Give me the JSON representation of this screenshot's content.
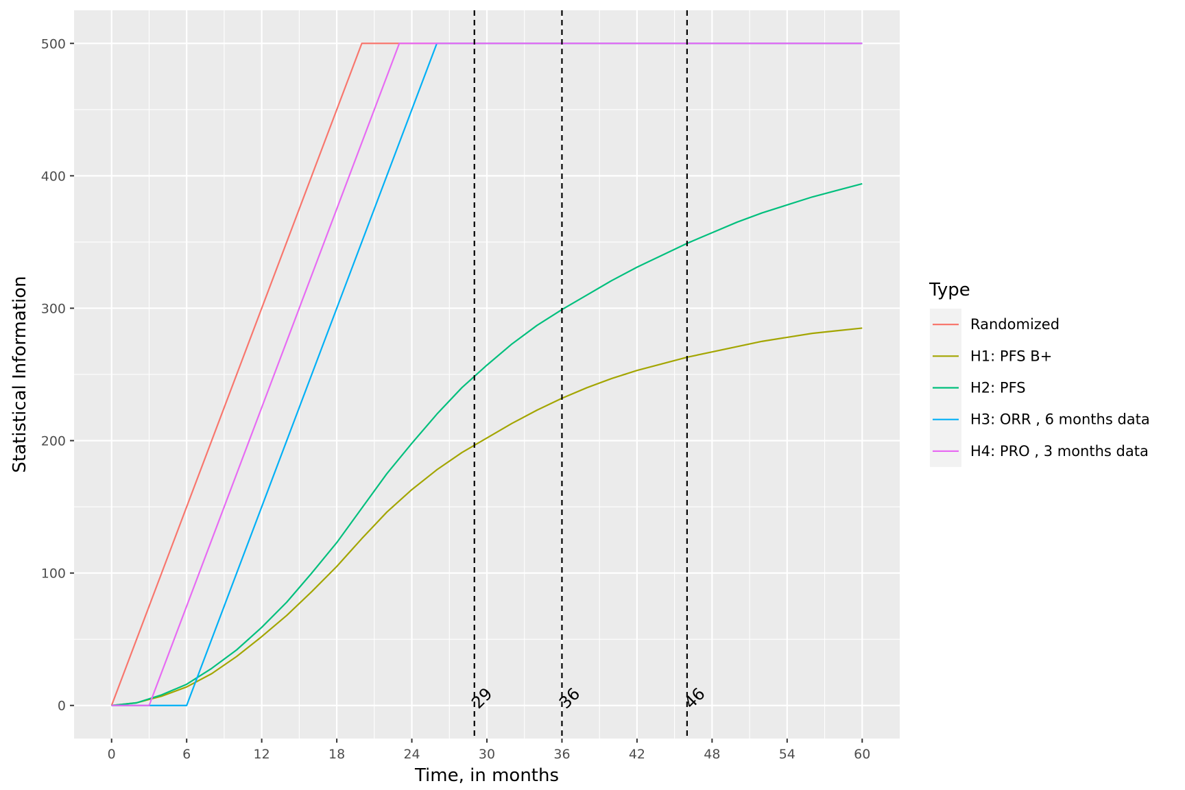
{
  "chart_data": {
    "type": "line",
    "title": "",
    "xlabel": "Time, in months",
    "ylabel": "Statistical Information",
    "xlim": [
      -3,
      63
    ],
    "ylim": [
      -25,
      525
    ],
    "x_ticks": [
      0,
      6,
      12,
      18,
      24,
      30,
      36,
      42,
      48,
      54,
      60
    ],
    "x_tick_labels": [
      "0",
      "6",
      "12",
      "18",
      "24",
      "30",
      "36",
      "42",
      "48",
      "54",
      "60"
    ],
    "y_ticks": [
      0,
      100,
      200,
      300,
      400,
      500
    ],
    "y_tick_labels": [
      "0",
      "100",
      "200",
      "300",
      "400",
      "500"
    ],
    "grid": true,
    "legend": {
      "title": "Type",
      "position": "right",
      "entries": [
        "Randomized",
        "H1: PFS B+",
        "H2: PFS",
        "H3: ORR , 6 months data",
        "H4: PRO , 3 months data"
      ]
    },
    "vlines": [
      {
        "x": 29,
        "label": "29"
      },
      {
        "x": 36,
        "label": "36"
      },
      {
        "x": 46,
        "label": "46"
      }
    ],
    "series": [
      {
        "name": "Randomized",
        "color": "#F8766D",
        "x": [
          0,
          20,
          60
        ],
        "y": [
          0,
          500,
          500
        ]
      },
      {
        "name": "H1: PFS B+",
        "color": "#A3A500",
        "x": [
          0,
          2,
          4,
          6,
          8,
          10,
          12,
          14,
          16,
          18,
          20,
          22,
          24,
          26,
          28,
          30,
          32,
          34,
          36,
          38,
          40,
          42,
          44,
          46,
          48,
          50,
          52,
          54,
          56,
          58,
          60
        ],
        "y": [
          0,
          2,
          7,
          14,
          24,
          37,
          52,
          68,
          86,
          105,
          126,
          146,
          163,
          178,
          191,
          202,
          213,
          223,
          232,
          240,
          247,
          253,
          258,
          263,
          267,
          271,
          275,
          278,
          281,
          283,
          285
        ]
      },
      {
        "name": "H2: PFS",
        "color": "#00BF7D",
        "x": [
          0,
          2,
          4,
          6,
          8,
          10,
          12,
          14,
          16,
          18,
          20,
          22,
          24,
          26,
          28,
          30,
          32,
          34,
          36,
          38,
          40,
          42,
          44,
          46,
          48,
          50,
          52,
          54,
          56,
          58,
          60
        ],
        "y": [
          0,
          2,
          8,
          16,
          28,
          42,
          59,
          78,
          100,
          123,
          149,
          175,
          198,
          220,
          240,
          257,
          273,
          287,
          299,
          310,
          321,
          331,
          340,
          349,
          357,
          365,
          372,
          378,
          384,
          389,
          394
        ]
      },
      {
        "name": "H3: ORR , 6 months data",
        "color": "#00B0F6",
        "x": [
          0,
          6,
          26,
          60
        ],
        "y": [
          0,
          0,
          500,
          500
        ]
      },
      {
        "name": "H4: PRO , 3 months data",
        "color": "#E76BF3",
        "x": [
          0,
          3,
          23,
          60
        ],
        "y": [
          0,
          0,
          500,
          500
        ]
      }
    ]
  }
}
